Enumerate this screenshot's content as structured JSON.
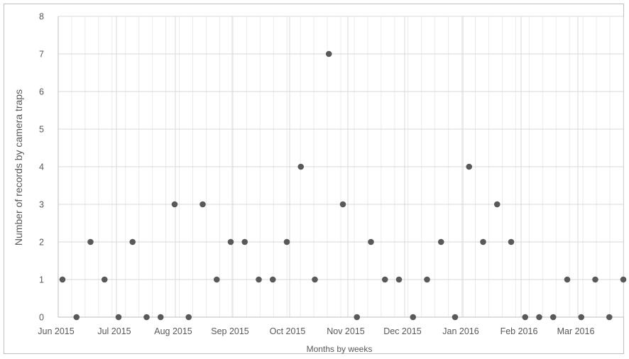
{
  "chart_data": {
    "type": "scatter",
    "title": "",
    "xlabel": "Months by weeks",
    "ylabel": "Number of records by camera traps",
    "ylim": [
      0,
      8
    ],
    "y_ticks": [
      "0",
      "1",
      "2",
      "3",
      "4",
      "5",
      "6",
      "7",
      "8"
    ],
    "x_tick_labels": [
      "Jun 2015",
      "Jul 2015",
      "Aug 2015",
      "Sep 2015",
      "Oct 2015",
      "Nov 2015",
      "Dec 2015",
      "Jan 2016",
      "Feb 2016",
      "Mar 2016"
    ],
    "x_range": [
      "Jun 2015",
      "Mar 2016"
    ],
    "grid": true,
    "marker_color": "#595959",
    "gridline_color": "#d9d9d9",
    "series": [
      {
        "values": [
          1,
          0,
          2,
          1,
          0,
          2,
          0,
          0,
          3,
          0,
          3,
          1,
          2,
          2,
          1,
          1,
          2,
          4,
          1,
          7,
          3,
          0,
          2,
          1,
          1,
          0,
          1,
          2,
          0,
          4,
          2,
          3,
          2,
          0,
          0,
          0,
          1,
          0,
          1,
          0,
          1
        ]
      }
    ]
  }
}
